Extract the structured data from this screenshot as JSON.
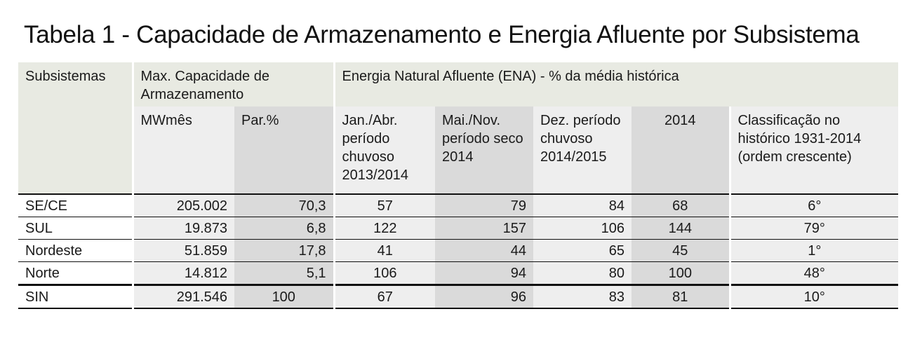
{
  "title": "Tabela 1 - Capacidade de Armazenamento e Energia Afluente por Subsistema",
  "header": {
    "subsistemas": "Subsistemas",
    "max_cap": "Max. Capacidade de Armazenamento",
    "ena": "Energia Natural Afluente (ENA) - % da média histórica",
    "mwmes": "MWmês",
    "par": "Par.%",
    "jan_abr": "Jan./Abr. período chuvoso 2013/2014",
    "mai_nov": "Mai./Nov. período seco 2014",
    "dez": "Dez. período chuvoso 2014/2015",
    "y2014": "2014",
    "classificacao": "Classificação no histórico 1931-2014 (ordem crescente)"
  },
  "rows": [
    {
      "sub": "SE/CE",
      "mwmes": "205.002",
      "par": "70,3",
      "jan_abr": "57",
      "mai_nov": "79",
      "dez": "84",
      "y2014": "68",
      "class": "6°"
    },
    {
      "sub": "SUL",
      "mwmes": "19.873",
      "par": "6,8",
      "jan_abr": "122",
      "mai_nov": "157",
      "dez": "106",
      "y2014": "144",
      "class": "79°"
    },
    {
      "sub": "Nordeste",
      "mwmes": "51.859",
      "par": "17,8",
      "jan_abr": "41",
      "mai_nov": "44",
      "dez": "65",
      "y2014": "45",
      "class": "1°"
    },
    {
      "sub": "Norte",
      "mwmes": "14.812",
      "par": "5,1",
      "jan_abr": "106",
      "mai_nov": "94",
      "dez": "80",
      "y2014": "100",
      "class": "48°"
    },
    {
      "sub": "SIN",
      "mwmes": "291.546",
      "par": "100",
      "jan_abr": "67",
      "mai_nov": "96",
      "dez": "83",
      "y2014": "81",
      "class": "10°"
    }
  ]
}
